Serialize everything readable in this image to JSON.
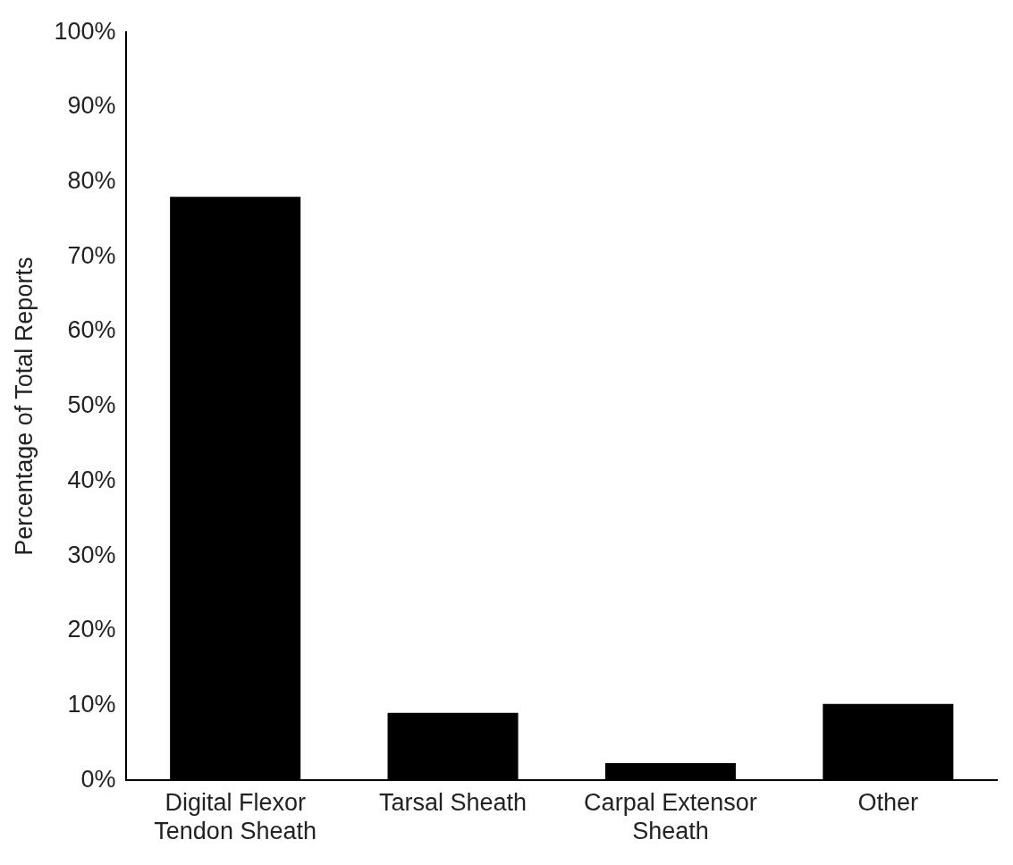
{
  "chart_data": {
    "type": "bar",
    "ylabel": "Percentage of Total Reports",
    "categories": [
      "Digital Flexor Tendon Sheath",
      "Tarsal Sheath",
      "Carpal Extensor Sheath",
      "Other"
    ],
    "values": [
      78,
      9,
      2.3,
      10.2
    ],
    "color": "#000000",
    "ylim": [
      0,
      100
    ],
    "yticks": [
      {
        "value": 0,
        "label": "0%"
      },
      {
        "value": 10,
        "label": "10%"
      },
      {
        "value": 20,
        "label": "20%"
      },
      {
        "value": 30,
        "label": "30%"
      },
      {
        "value": 40,
        "label": "40%"
      },
      {
        "value": 50,
        "label": "50%"
      },
      {
        "value": 60,
        "label": "60%"
      },
      {
        "value": 70,
        "label": "70%"
      },
      {
        "value": 80,
        "label": "80%"
      },
      {
        "value": 90,
        "label": "90%"
      },
      {
        "value": 100,
        "label": "100%"
      }
    ],
    "grid": false,
    "legend": false
  }
}
